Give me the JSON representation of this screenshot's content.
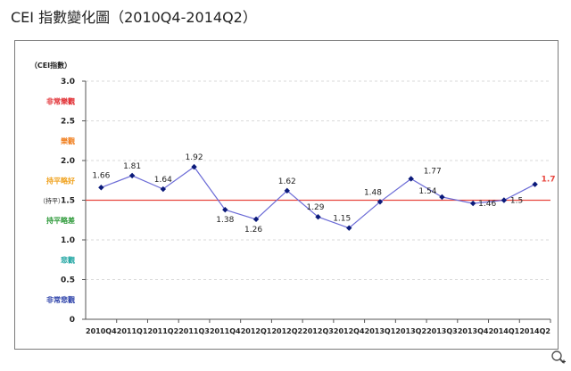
{
  "page": {
    "title": "CEI 指數變化圖（2010Q4-2014Q2）"
  },
  "icons": {
    "zoom": "magnify-plus-icon"
  },
  "colors": {
    "line": "#6b6bd6",
    "marker": "#0b1a7a",
    "reference": "#e8473f",
    "last_label": "#e8473f",
    "zone_very_prosperous": "#e0262b",
    "zone_prosperous": "#f07d1c",
    "zone_stable_good": "#f0a11c",
    "zone_stable_weak": "#2e9a3a",
    "zone_pessimistic": "#1ba3a0",
    "zone_very_pessimistic": "#2a3fa8"
  },
  "chart_data": {
    "type": "line",
    "title": "",
    "ylabel": "（CEI指數）",
    "xlabel": "",
    "ylim": [
      0,
      3
    ],
    "yticks": [
      "3.0",
      "2.5",
      "2.0",
      "1.5",
      "1.0",
      "0.5",
      "0"
    ],
    "grid": true,
    "categories": [
      "2010Q4",
      "2011Q1",
      "2011Q2",
      "2011Q3",
      "2011Q4",
      "2012Q1",
      "2012Q2",
      "2012Q3",
      "2012Q4",
      "2013Q1",
      "2013Q2",
      "2013Q3",
      "2013Q4",
      "2014Q1",
      "2014Q2"
    ],
    "series": [
      {
        "values": [
          1.66,
          1.81,
          1.64,
          1.92,
          1.38,
          1.26,
          1.62,
          1.29,
          1.15,
          1.48,
          1.77,
          1.54,
          1.46,
          1.5,
          1.7
        ]
      }
    ],
    "data_labels": [
      "1.66",
      "1.81",
      "1.64",
      "1.92",
      "1.38",
      "1.26",
      "1.62",
      "1.29",
      "1.15",
      "1.48",
      "1.77",
      "1.54",
      "1.46",
      "1.5",
      "1.7"
    ],
    "reference_line": {
      "value": 1.5,
      "label": "（持平）"
    },
    "zones": [
      {
        "label": "非常樂觀",
        "value": 2.75,
        "color_key": "zone_very_prosperous"
      },
      {
        "label": "樂觀",
        "value": 2.25,
        "color_key": "zone_prosperous"
      },
      {
        "label": "持平略好",
        "value": 1.75,
        "color_key": "zone_stable_good"
      },
      {
        "label": "持平略差",
        "value": 1.25,
        "color_key": "zone_stable_weak"
      },
      {
        "label": "悲觀",
        "value": 0.75,
        "color_key": "zone_pessimistic"
      },
      {
        "label": "非常悲觀",
        "value": 0.25,
        "color_key": "zone_very_pessimistic"
      }
    ]
  }
}
